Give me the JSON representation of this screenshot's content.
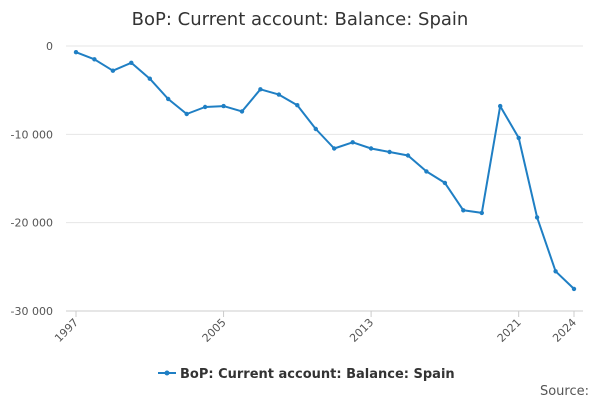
{
  "chart_data": {
    "type": "line",
    "title": "BoP: Current account: Balance: Spain",
    "xlabel": "",
    "ylabel": "",
    "x": [
      1997,
      1998,
      1999,
      2000,
      2001,
      2002,
      2003,
      2004,
      2005,
      2006,
      2007,
      2008,
      2009,
      2010,
      2011,
      2012,
      2013,
      2014,
      2015,
      2016,
      2017,
      2018,
      2019,
      2020,
      2021,
      2022,
      2023,
      2024
    ],
    "x_tick_labels": [
      "1997",
      "2005",
      "2013",
      "2021",
      "2024"
    ],
    "y_tick_labels": [
      "0",
      "-10 000",
      "-20 000",
      "-30 000"
    ],
    "ylim": [
      -30000,
      0
    ],
    "grid": true,
    "legend_position": "bottom",
    "series": [
      {
        "name": "BoP: Current account: Balance: Spain",
        "color": "#1f7fc4",
        "values": [
          -700,
          -1500,
          -2800,
          -1900,
          -3700,
          -6000,
          -7700,
          -6900,
          -6800,
          -7400,
          -4900,
          -5500,
          -6700,
          -9400,
          -11600,
          -10900,
          -11600,
          -12000,
          -12400,
          -14200,
          -15500,
          -18600,
          -18900,
          -6800,
          -10400,
          -19400,
          -25500,
          -27500
        ]
      }
    ]
  },
  "footer": {
    "source_label": "Source:"
  }
}
